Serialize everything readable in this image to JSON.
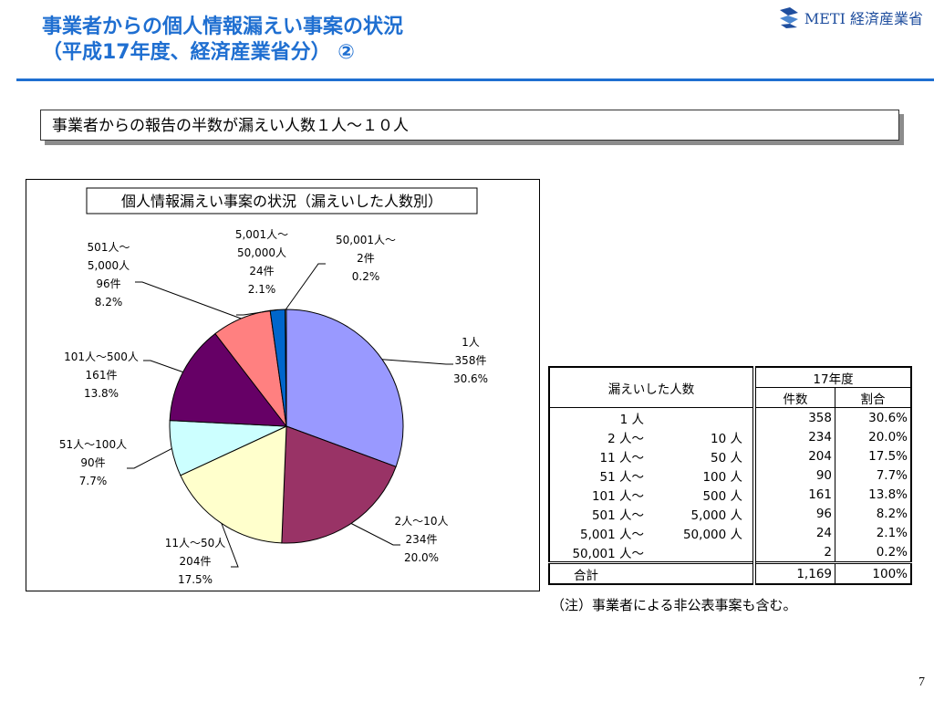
{
  "header": {
    "title_line1": "事業者からの個人情報漏えい事案の状況",
    "title_line2": "（平成17年度、経済産業省分） ②",
    "logo_text": "METI 経済産業省"
  },
  "callout_text": "事業者からの報告の半数が漏えい人数１人～１０人",
  "colors": {
    "title": "#1f6fd1",
    "logo": "#1f4e9e"
  },
  "chart_data": {
    "type": "pie",
    "title": "個人情報漏えい事案の状況（漏えいした人数別）",
    "start_angle_deg": 0,
    "direction": "clockwise",
    "slices": [
      {
        "label_lines": [
          "1人",
          "358件",
          "30.6%"
        ],
        "value": 358,
        "percent": 30.6,
        "color": "#9999ff"
      },
      {
        "label_lines": [
          "2人～10人",
          "234件",
          "20.0%"
        ],
        "value": 234,
        "percent": 20.0,
        "color": "#993366"
      },
      {
        "label_lines": [
          "11人～50人",
          "204件",
          "17.5%"
        ],
        "value": 204,
        "percent": 17.5,
        "color": "#ffffcc"
      },
      {
        "label_lines": [
          "51人～100人",
          "90件",
          "7.7%"
        ],
        "value": 90,
        "percent": 7.7,
        "color": "#ccffff"
      },
      {
        "label_lines": [
          "101人～500人",
          "161件",
          "13.8%"
        ],
        "value": 161,
        "percent": 13.8,
        "color": "#660066"
      },
      {
        "label_lines": [
          "501人～",
          "5,000人",
          "96件",
          "8.2%"
        ],
        "value": 96,
        "percent": 8.2,
        "color": "#ff8080"
      },
      {
        "label_lines": [
          "5,001人～",
          "50,000人",
          "24件",
          "2.1%"
        ],
        "value": 24,
        "percent": 2.1,
        "color": "#0066cc"
      },
      {
        "label_lines": [
          "50,001人～",
          "2件",
          "0.2%"
        ],
        "value": 2,
        "percent": 0.2,
        "color": "#c0c0c0"
      }
    ]
  },
  "table": {
    "header_range": "漏えいした人数",
    "header_year": "17年度",
    "header_count": "件数",
    "header_ratio": "割合",
    "rows": [
      {
        "from": "1 人",
        "to": "",
        "count": "358",
        "ratio": "30.6%"
      },
      {
        "from": "2 人～",
        "to": "10 人",
        "count": "234",
        "ratio": "20.0%"
      },
      {
        "from": "11 人～",
        "to": "50 人",
        "count": "204",
        "ratio": "17.5%"
      },
      {
        "from": "51 人～",
        "to": "100 人",
        "count": "90",
        "ratio": "7.7%"
      },
      {
        "from": "101 人～",
        "to": "500 人",
        "count": "161",
        "ratio": "13.8%"
      },
      {
        "from": "501 人～",
        "to": "5,000 人",
        "count": "96",
        "ratio": "8.2%"
      },
      {
        "from": "5,001 人～",
        "to": "50,000 人",
        "count": "24",
        "ratio": "2.1%"
      },
      {
        "from": "50,001 人～",
        "to": "",
        "count": "2",
        "ratio": "0.2%"
      }
    ],
    "total_label": "合計",
    "total_count": "1,169",
    "total_ratio": "100%"
  },
  "note": "（注）事業者による非公表事案も含む。",
  "page_number": "7"
}
